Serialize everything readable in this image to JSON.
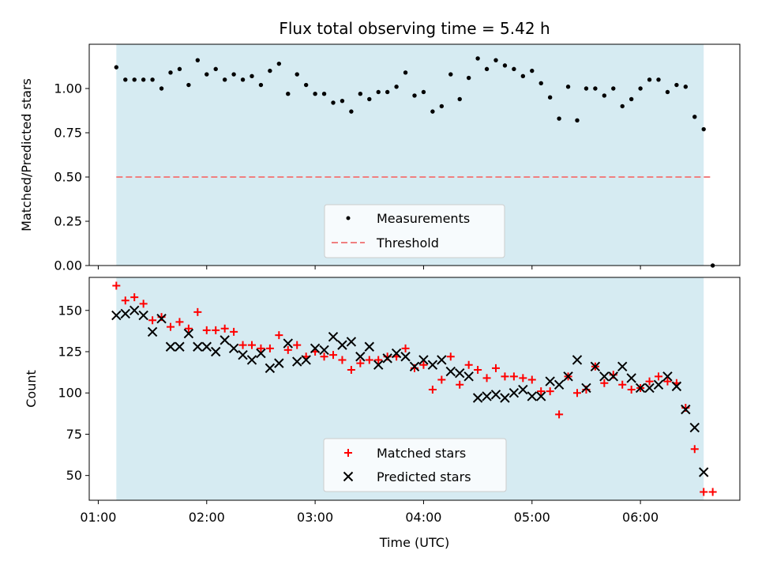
{
  "chart_data": [
    {
      "type": "scatter",
      "title": "Flux total observing time = 5.42 h",
      "xlabel": "",
      "ylabel": "Matched/Predicted stars",
      "ylim": [
        0,
        1.25
      ],
      "yticks": [
        "0.00",
        "0.25",
        "0.50",
        "0.75",
        "1.00"
      ],
      "ytick_values": [
        0,
        0.25,
        0.5,
        0.75,
        1.0
      ],
      "legend": {
        "placement": "lower-center",
        "entries": [
          "Measurements",
          "Threshold"
        ]
      },
      "shaded_span": [
        "01:10",
        "06:35"
      ],
      "threshold": {
        "name": "Threshold",
        "y": 0.5,
        "x_from": "01:10",
        "x_to": "06:40",
        "color": "#f08080"
      },
      "series": [
        {
          "name": "Measurements",
          "marker": "dot",
          "color": "#000000",
          "x": [
            "01:10",
            "01:15",
            "01:20",
            "01:25",
            "01:30",
            "01:35",
            "01:40",
            "01:45",
            "01:50",
            "01:55",
            "02:00",
            "02:05",
            "02:10",
            "02:15",
            "02:20",
            "02:25",
            "02:30",
            "02:35",
            "02:40",
            "02:45",
            "02:50",
            "02:55",
            "03:00",
            "03:05",
            "03:10",
            "03:15",
            "03:20",
            "03:25",
            "03:30",
            "03:35",
            "03:40",
            "03:45",
            "03:50",
            "03:55",
            "04:00",
            "04:05",
            "04:10",
            "04:15",
            "04:20",
            "04:25",
            "04:30",
            "04:35",
            "04:40",
            "04:45",
            "04:50",
            "04:55",
            "05:00",
            "05:05",
            "05:10",
            "05:15",
            "05:20",
            "05:25",
            "05:30",
            "05:35",
            "05:40",
            "05:45",
            "05:50",
            "05:55",
            "06:00",
            "06:05",
            "06:10",
            "06:15",
            "06:20",
            "06:25",
            "06:30",
            "06:35",
            "06:40"
          ],
          "y": [
            1.12,
            1.05,
            1.05,
            1.05,
            1.05,
            1.0,
            1.09,
            1.11,
            1.02,
            1.16,
            1.08,
            1.11,
            1.05,
            1.08,
            1.05,
            1.07,
            1.02,
            1.1,
            1.14,
            0.97,
            1.08,
            1.02,
            0.97,
            0.97,
            0.92,
            0.93,
            0.87,
            0.97,
            0.94,
            0.98,
            0.98,
            1.01,
            1.09,
            0.96,
            0.98,
            0.87,
            0.9,
            1.08,
            0.94,
            1.06,
            1.17,
            1.11,
            1.16,
            1.13,
            1.11,
            1.07,
            1.1,
            1.03,
            0.95,
            0.83,
            1.01,
            0.82,
            1.0,
            1.0,
            0.96,
            1.0,
            0.9,
            0.94,
            1.0,
            1.05,
            1.05,
            0.98,
            1.02,
            1.01,
            0.84,
            0.77,
            0.0
          ]
        }
      ]
    },
    {
      "type": "scatter",
      "title": "",
      "xlabel": "Time (UTC)",
      "ylabel": "Count",
      "ylim": [
        35,
        170
      ],
      "yticks": [
        "50",
        "75",
        "100",
        "125",
        "150"
      ],
      "ytick_values": [
        50,
        75,
        100,
        125,
        150
      ],
      "xlim": [
        "00:55",
        "06:55"
      ],
      "xticks": [
        "01:00",
        "02:00",
        "03:00",
        "04:00",
        "05:00",
        "06:00"
      ],
      "legend": {
        "placement": "lower-center",
        "entries": [
          "Matched stars",
          "Predicted stars"
        ]
      },
      "shaded_span": [
        "01:10",
        "06:35"
      ],
      "series": [
        {
          "name": "Matched stars",
          "marker": "plus",
          "color": "#ff0000",
          "x": [
            "01:10",
            "01:15",
            "01:20",
            "01:25",
            "01:30",
            "01:35",
            "01:40",
            "01:45",
            "01:50",
            "01:55",
            "02:00",
            "02:05",
            "02:10",
            "02:15",
            "02:20",
            "02:25",
            "02:30",
            "02:35",
            "02:40",
            "02:45",
            "02:50",
            "02:55",
            "03:00",
            "03:05",
            "03:10",
            "03:15",
            "03:20",
            "03:25",
            "03:30",
            "03:35",
            "03:40",
            "03:45",
            "03:50",
            "03:55",
            "04:00",
            "04:05",
            "04:10",
            "04:15",
            "04:20",
            "04:25",
            "04:30",
            "04:35",
            "04:40",
            "04:45",
            "04:50",
            "04:55",
            "05:00",
            "05:05",
            "05:10",
            "05:15",
            "05:20",
            "05:25",
            "05:30",
            "05:35",
            "05:40",
            "05:45",
            "05:50",
            "05:55",
            "06:00",
            "06:05",
            "06:10",
            "06:15",
            "06:20",
            "06:25",
            "06:30",
            "06:35",
            "06:40"
          ],
          "y": [
            165,
            156,
            158,
            154,
            144,
            146,
            140,
            143,
            139,
            149,
            138,
            138,
            139,
            137,
            129,
            129,
            127,
            127,
            135,
            126,
            129,
            122,
            125,
            122,
            123,
            120,
            114,
            118,
            120,
            120,
            122,
            122,
            127,
            115,
            117,
            102,
            108,
            122,
            105,
            117,
            114,
            109,
            115,
            110,
            110,
            109,
            108,
            101,
            101,
            87,
            110,
            100,
            102,
            116,
            106,
            111,
            105,
            102,
            103,
            107,
            110,
            107,
            106,
            91,
            66,
            40,
            40
          ]
        },
        {
          "name": "Predicted stars",
          "marker": "x",
          "color": "#000000",
          "x": [
            "01:10",
            "01:15",
            "01:20",
            "01:25",
            "01:30",
            "01:35",
            "01:40",
            "01:45",
            "01:50",
            "01:55",
            "02:00",
            "02:05",
            "02:10",
            "02:15",
            "02:20",
            "02:25",
            "02:30",
            "02:35",
            "02:40",
            "02:45",
            "02:50",
            "02:55",
            "03:00",
            "03:05",
            "03:10",
            "03:15",
            "03:20",
            "03:25",
            "03:30",
            "03:35",
            "03:40",
            "03:45",
            "03:50",
            "03:55",
            "04:00",
            "04:05",
            "04:10",
            "04:15",
            "04:20",
            "04:25",
            "04:30",
            "04:35",
            "04:40",
            "04:45",
            "04:50",
            "04:55",
            "05:00",
            "05:05",
            "05:10",
            "05:15",
            "05:20",
            "05:25",
            "05:30",
            "05:35",
            "05:40",
            "05:45",
            "05:50",
            "05:55",
            "06:00",
            "06:05",
            "06:10",
            "06:15",
            "06:20",
            "06:25",
            "06:30",
            "06:35"
          ],
          "y": [
            147,
            148,
            150,
            147,
            137,
            145,
            128,
            128,
            136,
            128,
            128,
            125,
            132,
            127,
            123,
            120,
            124,
            115,
            118,
            130,
            119,
            120,
            127,
            126,
            134,
            129,
            131,
            122,
            128,
            117,
            121,
            124,
            122,
            116,
            120,
            117,
            120,
            113,
            112,
            110,
            97,
            98,
            99,
            97,
            100,
            102,
            98,
            98,
            107,
            105,
            110,
            120,
            103,
            116,
            110,
            110,
            116,
            109,
            103,
            103,
            105,
            110,
            104,
            90,
            79,
            52
          ]
        }
      ]
    }
  ]
}
